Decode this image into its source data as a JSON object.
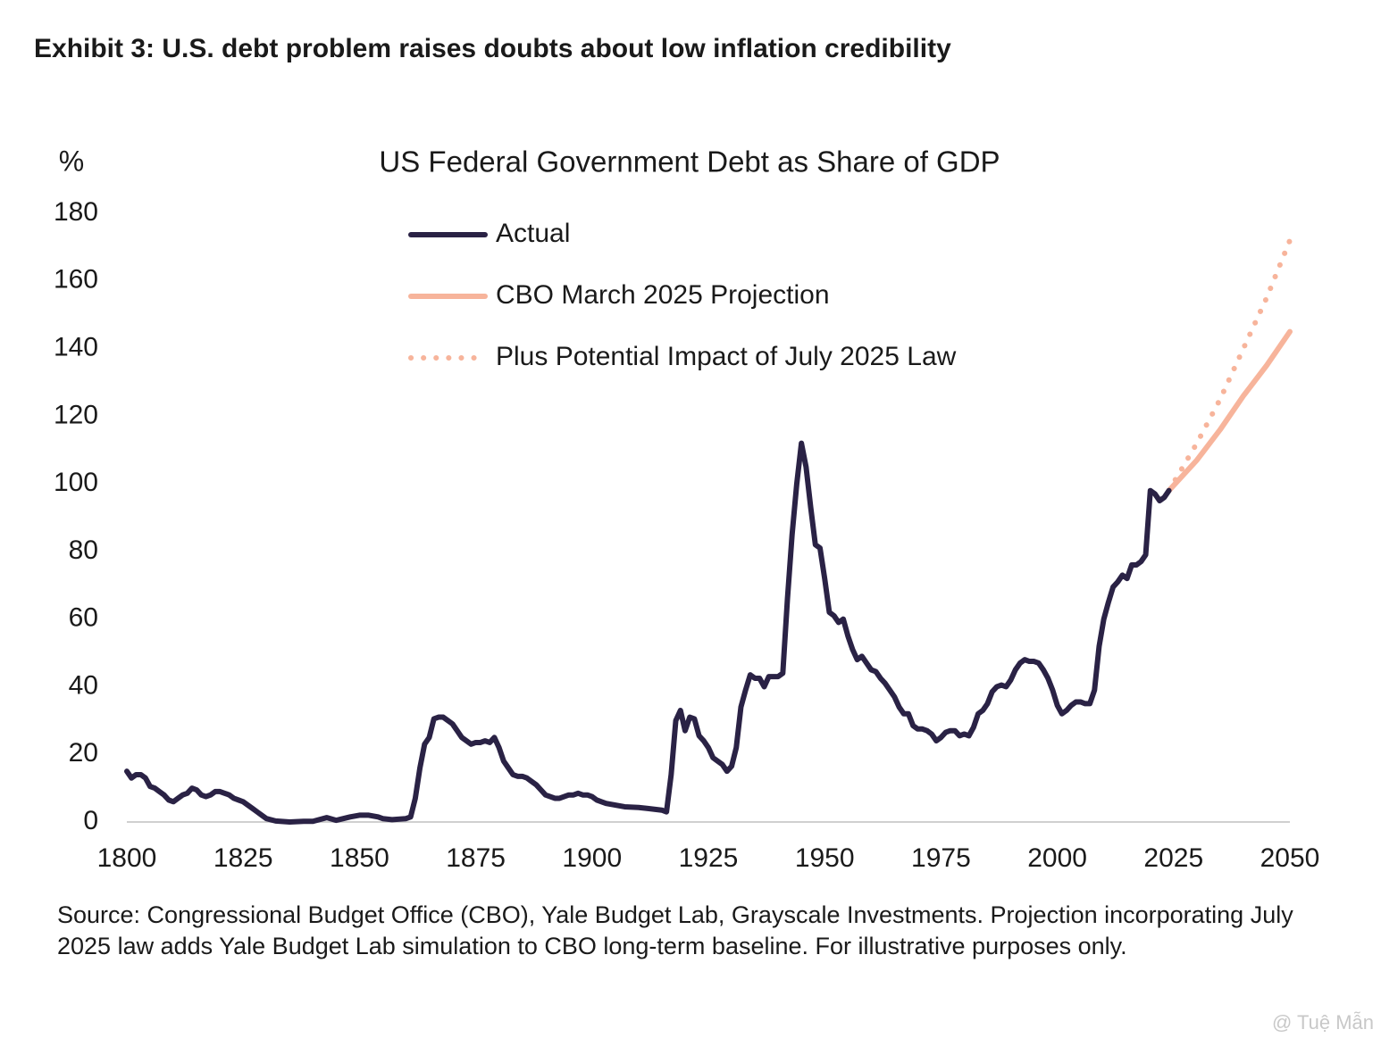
{
  "header": {
    "title": "Exhibit 3: U.S. debt problem raises doubts about low inflation credibility"
  },
  "chart_data": {
    "type": "line",
    "title": "US Federal Government Debt as Share of GDP",
    "y_label": "%",
    "xlim": [
      1800,
      2050
    ],
    "xticks": [
      1800,
      1825,
      1850,
      1875,
      1900,
      1925,
      1950,
      1975,
      2000,
      2025,
      2050
    ],
    "ylim": [
      0,
      180
    ],
    "yticks": [
      0,
      20,
      40,
      60,
      80,
      100,
      120,
      140,
      160,
      180
    ],
    "grid": false,
    "legend": "top",
    "series": [
      {
        "name": "Actual",
        "color": "#2a2245",
        "style": "solid",
        "x": [
          1800,
          1801,
          1802,
          1803,
          1804,
          1805,
          1806,
          1807,
          1808,
          1809,
          1810,
          1811,
          1812,
          1813,
          1814,
          1815,
          1816,
          1817,
          1818,
          1819,
          1820,
          1821,
          1822,
          1823,
          1824,
          1825,
          1826,
          1827,
          1828,
          1829,
          1830,
          1832,
          1835,
          1838,
          1840,
          1843,
          1845,
          1848,
          1850,
          1852,
          1854,
          1855,
          1857,
          1860,
          1861,
          1862,
          1863,
          1864,
          1865,
          1866,
          1867,
          1868,
          1869,
          1870,
          1871,
          1872,
          1873,
          1874,
          1875,
          1876,
          1877,
          1878,
          1879,
          1880,
          1881,
          1882,
          1883,
          1884,
          1885,
          1886,
          1887,
          1888,
          1889,
          1890,
          1891,
          1892,
          1893,
          1894,
          1895,
          1896,
          1897,
          1898,
          1899,
          1900,
          1901,
          1902,
          1903,
          1905,
          1907,
          1910,
          1912,
          1915,
          1916,
          1917,
          1918,
          1919,
          1920,
          1921,
          1922,
          1923,
          1924,
          1925,
          1926,
          1927,
          1928,
          1929,
          1930,
          1931,
          1932,
          1933,
          1934,
          1935,
          1936,
          1937,
          1938,
          1939,
          1940,
          1941,
          1942,
          1943,
          1944,
          1945,
          1946,
          1947,
          1948,
          1949,
          1950,
          1951,
          1952,
          1953,
          1954,
          1955,
          1956,
          1957,
          1958,
          1959,
          1960,
          1961,
          1962,
          1963,
          1964,
          1965,
          1966,
          1967,
          1968,
          1969,
          1970,
          1971,
          1972,
          1973,
          1974,
          1975,
          1976,
          1977,
          1978,
          1979,
          1980,
          1981,
          1982,
          1983,
          1984,
          1985,
          1986,
          1987,
          1988,
          1989,
          1990,
          1991,
          1992,
          1993,
          1994,
          1995,
          1996,
          1997,
          1998,
          1999,
          2000,
          2001,
          2002,
          2003,
          2004,
          2005,
          2006,
          2007,
          2008,
          2009,
          2010,
          2011,
          2012,
          2013,
          2014,
          2015,
          2016,
          2017,
          2018,
          2019,
          2020,
          2021,
          2022,
          2023,
          2024
        ],
        "values": [
          15,
          13,
          14,
          14,
          13,
          10.5,
          10,
          9,
          8,
          6.5,
          6,
          7,
          8,
          8.5,
          10,
          9.5,
          8,
          7.5,
          8,
          9,
          9,
          8.5,
          8,
          7,
          6.5,
          6,
          5,
          4,
          3,
          2,
          1,
          0.3,
          0,
          0.2,
          0.2,
          1.3,
          0.5,
          1.5,
          2,
          2,
          1.5,
          1,
          0.7,
          1,
          1.5,
          7,
          16,
          23,
          25,
          30.5,
          31,
          31,
          30,
          29,
          27,
          25,
          24,
          23,
          23.5,
          23.5,
          24,
          23.5,
          25,
          22,
          18,
          16,
          14,
          13.5,
          13.5,
          13,
          12,
          11,
          9.5,
          8,
          7.5,
          7,
          7,
          7.5,
          8,
          8,
          8.5,
          8,
          8,
          7.5,
          6.5,
          6,
          5.5,
          5,
          4.5,
          4.3,
          4,
          3.5,
          3,
          14,
          30,
          33,
          27,
          31,
          30.5,
          25.5,
          24,
          22,
          19,
          18,
          17,
          15,
          16.5,
          22,
          34,
          39,
          43.5,
          42.5,
          42.5,
          40,
          43,
          43,
          43,
          44,
          66,
          85,
          100,
          112,
          105,
          93,
          82,
          81,
          72,
          62,
          61,
          59,
          60,
          55,
          51,
          48,
          49,
          47,
          45,
          44.5,
          42.5,
          41,
          39,
          37,
          34,
          32,
          32,
          28.5,
          27.5,
          27.5,
          27,
          26,
          24,
          25,
          26.5,
          27,
          27,
          25.5,
          26,
          25.5,
          28,
          32,
          33,
          35,
          38.5,
          40,
          40.5,
          40,
          42,
          45,
          47,
          48,
          47.5,
          47.5,
          47,
          45,
          42.5,
          39,
          34.5,
          32,
          33,
          34.5,
          35.5,
          35.5,
          35,
          35,
          39,
          52,
          60,
          65,
          69.5,
          71,
          73,
          72,
          76,
          76,
          77,
          79,
          98,
          97,
          95,
          96,
          98
        ]
      },
      {
        "name": "CBO March 2025 Projection",
        "color": "#f7b49b",
        "style": "solid",
        "x": [
          2024,
          2030,
          2035,
          2040,
          2045,
          2050
        ],
        "values": [
          98,
          107,
          116,
          126,
          135,
          145
        ]
      },
      {
        "name": "Plus Potential Impact of July 2025 Law",
        "color": "#f7b49b",
        "style": "dotted",
        "x": [
          2024,
          2030,
          2035,
          2040,
          2045,
          2050
        ],
        "values": [
          98,
          112,
          125,
          140,
          155,
          172
        ]
      }
    ]
  },
  "source": "Source: Congressional Budget Office (CBO), Yale Budget Lab, Grayscale Investments. Projection incorporating July 2025 law adds Yale Budget Lab simulation to CBO long-term baseline. For illustrative purposes only.",
  "watermark": "@ Tuệ Mẫn"
}
